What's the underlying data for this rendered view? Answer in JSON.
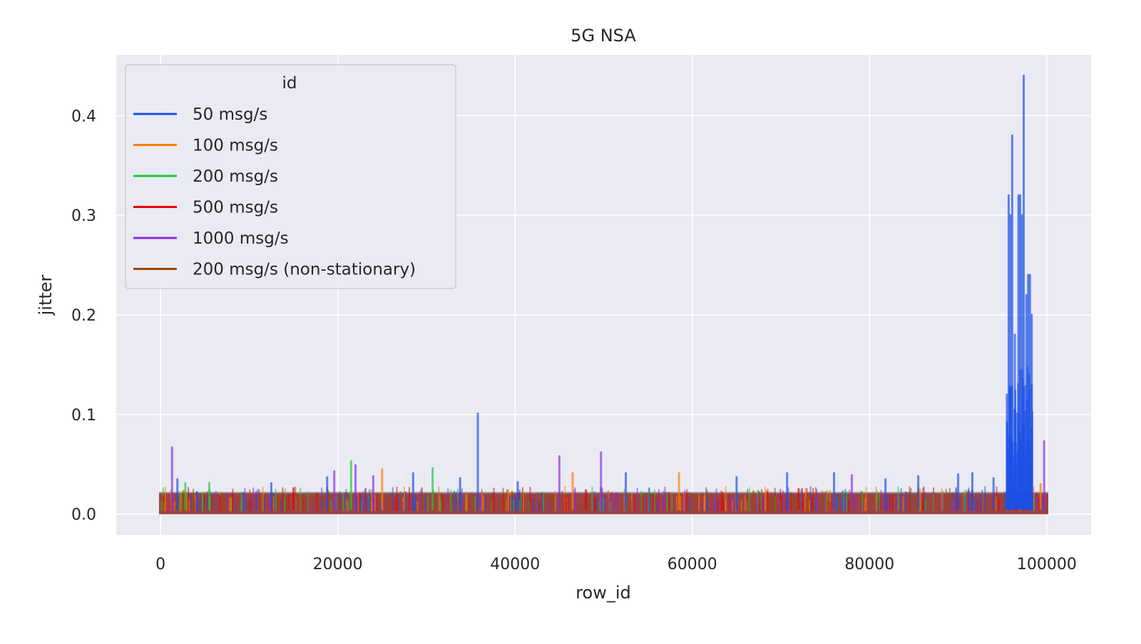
{
  "chart_data": {
    "type": "line",
    "title": "5G NSA",
    "xlabel": "row_id",
    "ylabel": "jitter",
    "xlim": [
      -5000,
      105000
    ],
    "ylim": [
      -0.021,
      0.461
    ],
    "x_ticks": [
      0,
      20000,
      40000,
      60000,
      80000,
      100000
    ],
    "x_tick_labels": [
      "0",
      "20000",
      "40000",
      "60000",
      "80000",
      "100000"
    ],
    "y_ticks": [
      0.0,
      0.1,
      0.2,
      0.3,
      0.4
    ],
    "y_tick_labels": [
      "0.0",
      "0.1",
      "0.2",
      "0.3",
      "0.4"
    ],
    "grid": true,
    "legend": {
      "title": "id",
      "placement": "top-left",
      "entries": [
        "50 msg/s",
        "100 msg/s",
        "200 msg/s",
        "500 msg/s",
        "1000 msg/s",
        "200 msg/s (non-stationary)"
      ]
    },
    "baseline": {
      "x_range": [
        0,
        100000
      ],
      "y_range": [
        0.0,
        0.02
      ]
    },
    "series": [
      {
        "name": "50 msg/s",
        "color": "#1a4fe6",
        "spikes": [
          [
            1900,
            0.035
          ],
          [
            12500,
            0.031
          ],
          [
            18800,
            0.037
          ],
          [
            28500,
            0.041
          ],
          [
            33800,
            0.036
          ],
          [
            35800,
            0.101
          ],
          [
            40300,
            0.032
          ],
          [
            52500,
            0.041
          ],
          [
            65000,
            0.037
          ],
          [
            70700,
            0.041
          ],
          [
            76000,
            0.041
          ],
          [
            81800,
            0.035
          ],
          [
            85500,
            0.038
          ],
          [
            90000,
            0.04
          ],
          [
            91600,
            0.041
          ],
          [
            94000,
            0.036
          ],
          [
            95500,
            0.12
          ],
          [
            95700,
            0.32
          ],
          [
            95900,
            0.3
          ],
          [
            96100,
            0.38
          ],
          [
            96400,
            0.18
          ],
          [
            96800,
            0.32
          ],
          [
            97000,
            0.32
          ],
          [
            97200,
            0.3
          ],
          [
            97400,
            0.44
          ],
          [
            97700,
            0.22
          ],
          [
            97900,
            0.24
          ],
          [
            98100,
            0.24
          ],
          [
            98300,
            0.2
          ]
        ]
      },
      {
        "name": "100 msg/s",
        "color": "#ff7c00",
        "spikes": [
          [
            25000,
            0.045
          ],
          [
            46500,
            0.041
          ],
          [
            58500,
            0.041
          ],
          [
            99300,
            0.03
          ]
        ]
      },
      {
        "name": "200 msg/s",
        "color": "#1ac938",
        "spikes": [
          [
            2800,
            0.031
          ],
          [
            5500,
            0.031
          ],
          [
            21500,
            0.053
          ],
          [
            30700,
            0.046
          ]
        ]
      },
      {
        "name": "500 msg/s",
        "color": "#e8000b",
        "spikes": [
          [
            15000,
            0.026
          ],
          [
            48000,
            0.024
          ],
          [
            72000,
            0.025
          ]
        ]
      },
      {
        "name": "1000 msg/s",
        "color": "#8b2be2",
        "spikes": [
          [
            1300,
            0.067
          ],
          [
            19600,
            0.043
          ],
          [
            22000,
            0.049
          ],
          [
            24000,
            0.038
          ],
          [
            45000,
            0.058
          ],
          [
            49700,
            0.062
          ],
          [
            78000,
            0.039
          ],
          [
            99700,
            0.073
          ]
        ]
      },
      {
        "name": "200 msg/s (non-stationary)",
        "color": "#9f4800",
        "spikes": [
          [
            42200,
            0.015
          ],
          [
            71500,
            0.014
          ]
        ]
      }
    ]
  }
}
